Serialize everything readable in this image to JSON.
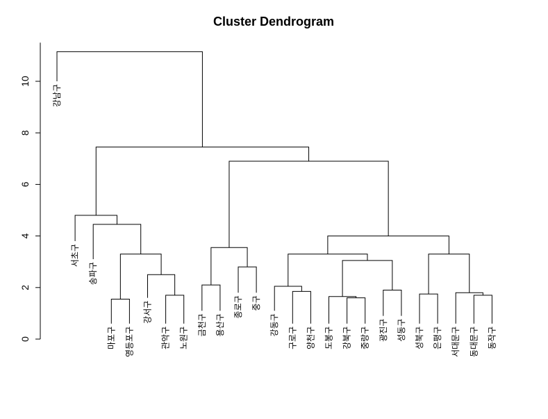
{
  "chart_data": {
    "type": "dendrogram",
    "title": "Cluster Dendrogram",
    "ylabel": "",
    "xlabel": "",
    "ylim": [
      0,
      11.5
    ],
    "yticks": [
      0,
      2,
      4,
      6,
      8,
      10
    ],
    "leaves": [
      {
        "label": "강남구",
        "height": 10.0
      },
      {
        "label": "서초구",
        "height": 3.8
      },
      {
        "label": "송파구",
        "height": 3.1
      },
      {
        "label": "마포구",
        "height": 0.6
      },
      {
        "label": "영등포구",
        "height": 0.6
      },
      {
        "label": "강서구",
        "height": 1.6
      },
      {
        "label": "관악구",
        "height": 0.6
      },
      {
        "label": "노원구",
        "height": 0.6
      },
      {
        "label": "금천구",
        "height": 1.1
      },
      {
        "label": "용산구",
        "height": 1.1
      },
      {
        "label": "종로구",
        "height": 1.8
      },
      {
        "label": "중구",
        "height": 1.8
      },
      {
        "label": "강동구",
        "height": 1.1
      },
      {
        "label": "구로구",
        "height": 0.6
      },
      {
        "label": "양천구",
        "height": 0.6
      },
      {
        "label": "도봉구",
        "height": 0.6
      },
      {
        "label": "강북구",
        "height": 0.6
      },
      {
        "label": "중랑구",
        "height": 0.6
      },
      {
        "label": "광진구",
        "height": 0.9
      },
      {
        "label": "성동구",
        "height": 0.9
      },
      {
        "label": "성북구",
        "height": 0.6
      },
      {
        "label": "은평구",
        "height": 0.6
      },
      {
        "label": "서대문구",
        "height": 0.6
      },
      {
        "label": "동대문구",
        "height": 0.6
      },
      {
        "label": "동작구",
        "height": 0.6
      }
    ],
    "merges": [
      {
        "id": "m1",
        "left": "L3",
        "right": "L4",
        "height": 1.55
      },
      {
        "id": "m2",
        "left": "L6",
        "right": "L7",
        "height": 1.7
      },
      {
        "id": "m3",
        "left": "L5",
        "right": "m2",
        "height": 2.5
      },
      {
        "id": "m4",
        "left": "m1",
        "right": "m3",
        "height": 3.3
      },
      {
        "id": "m5",
        "left": "L2",
        "right": "m4",
        "height": 4.45
      },
      {
        "id": "m6",
        "left": "L1",
        "right": "m5",
        "height": 4.8
      },
      {
        "id": "m7",
        "left": "L8",
        "right": "L9",
        "height": 2.1
      },
      {
        "id": "m8",
        "left": "L10",
        "right": "L11",
        "height": 2.8
      },
      {
        "id": "m9",
        "left": "m7",
        "right": "m8",
        "height": 3.55
      },
      {
        "id": "m10",
        "left": "L13",
        "right": "L14",
        "height": 1.85
      },
      {
        "id": "m11",
        "left": "L12",
        "right": "m10",
        "height": 2.05
      },
      {
        "id": "m12",
        "left": "L16",
        "right": "L17",
        "height": 1.6
      },
      {
        "id": "m13",
        "left": "L15",
        "right": "m12",
        "height": 1.65
      },
      {
        "id": "m14",
        "left": "L18",
        "right": "L19",
        "height": 1.9
      },
      {
        "id": "m15",
        "left": "m13",
        "right": "m14",
        "height": 3.05
      },
      {
        "id": "m16",
        "left": "m11",
        "right": "m15",
        "height": 3.3
      },
      {
        "id": "m17",
        "left": "L20",
        "right": "L21",
        "height": 1.75
      },
      {
        "id": "m18",
        "left": "L23",
        "right": "L24",
        "height": 1.7
      },
      {
        "id": "m19",
        "left": "L22",
        "right": "m18",
        "height": 1.8
      },
      {
        "id": "m20",
        "left": "m17",
        "right": "m19",
        "height": 3.3
      },
      {
        "id": "m21",
        "left": "m16",
        "right": "m20",
        "height": 4.0
      },
      {
        "id": "m22",
        "left": "m9",
        "right": "m21",
        "height": 6.9
      },
      {
        "id": "m23",
        "left": "m6",
        "right": "m22",
        "height": 7.45
      },
      {
        "id": "m24",
        "left": "L0",
        "right": "m23",
        "height": 11.15
      }
    ],
    "grid": false,
    "legend": "none"
  }
}
